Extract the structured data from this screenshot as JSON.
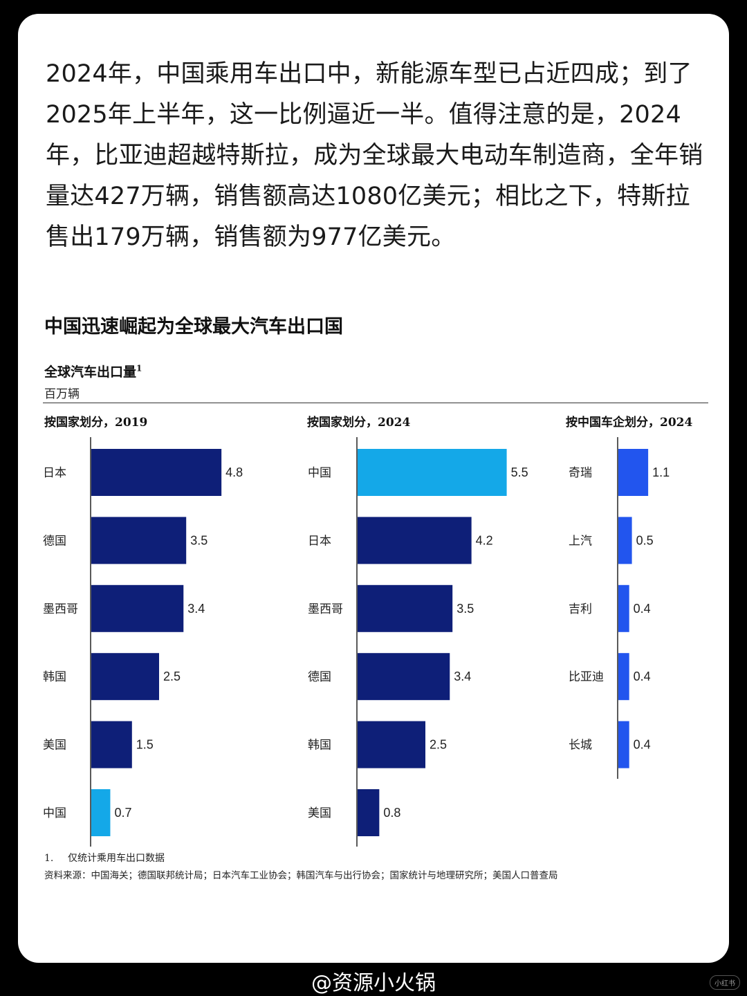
{
  "intro_text": "2024年，中国乘用车出口中，新能源车型已占近四成；到了2025年上半年，这一比例逼近一半。值得注意的是，2024年，比亚迪超越特斯拉，成为全球最大电动车制造商，全年销量达427万辆，销售额高达1080亿美元；相比之下，特斯拉售出179万辆，销售额为977亿美元。",
  "chart": {
    "title": "中国迅速崛起为全球最大汽车出口国",
    "subtitle": "全球汽车出口量",
    "subtitle_sup": "1",
    "unit": "百万辆"
  },
  "chart_data": [
    {
      "type": "bar",
      "orientation": "horizontal",
      "title": "按国家划分，2019",
      "categories": [
        "日本",
        "德国",
        "墨西哥",
        "韩国",
        "美国",
        "中国"
      ],
      "values": [
        4.8,
        3.5,
        3.4,
        2.5,
        1.5,
        0.7
      ],
      "highlight": [
        "中国"
      ]
    },
    {
      "type": "bar",
      "orientation": "horizontal",
      "title": "按国家划分，2024",
      "categories": [
        "中国",
        "日本",
        "墨西哥",
        "德国",
        "韩国",
        "美国"
      ],
      "values": [
        5.5,
        4.2,
        3.5,
        3.4,
        2.5,
        0.8
      ],
      "highlight": [
        "中国"
      ]
    },
    {
      "type": "bar",
      "orientation": "horizontal",
      "title": "按中国车企划分，2024",
      "categories": [
        "奇瑞",
        "上汽",
        "吉利",
        "比亚迪",
        "长城"
      ],
      "values": [
        1.1,
        0.5,
        0.4,
        0.4,
        0.4
      ],
      "highlight": []
    }
  ],
  "colors": {
    "bar": "#0e1f78",
    "highlight": "#14a8e8",
    "company_bar": "#2255ee"
  },
  "footnote": {
    "num": "1.",
    "text": "仅统计乘用车出口数据"
  },
  "source": "资料来源：中国海关；德国联邦统计局；日本汽车工业协会；韩国汽车与出行协会；国家统计与地理研究所；美国人口普查局",
  "watermark": "@资源小火锅",
  "badge": "小红书"
}
